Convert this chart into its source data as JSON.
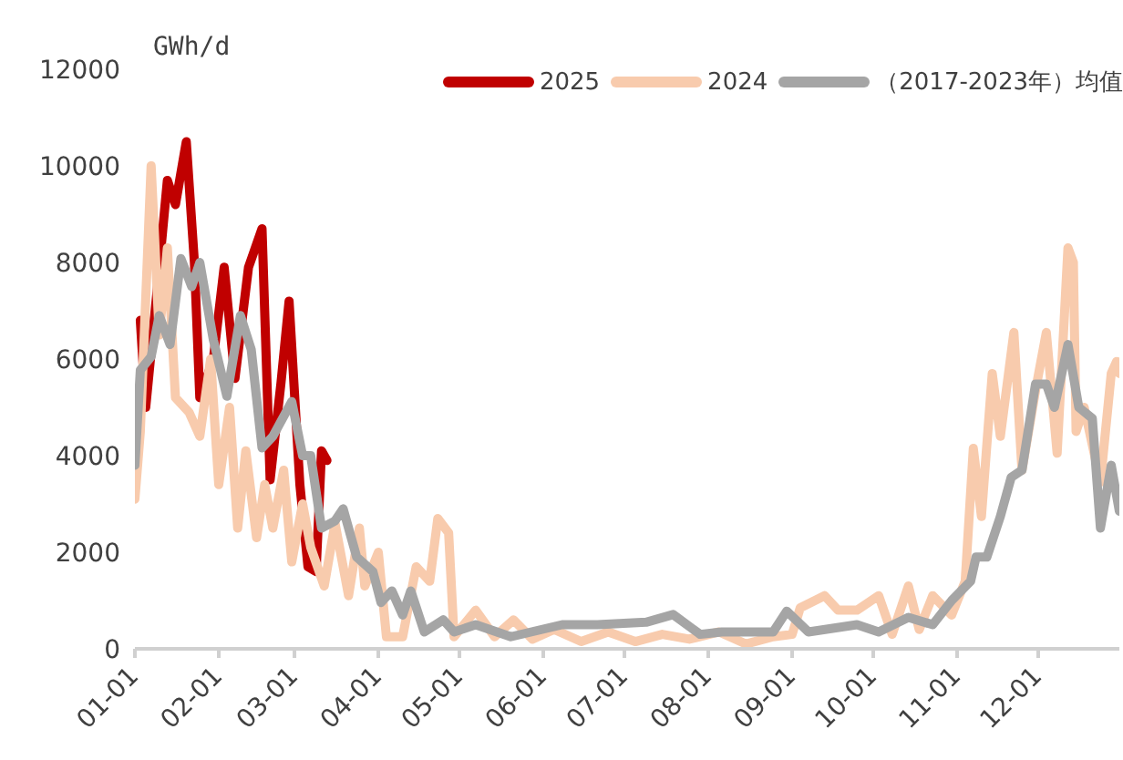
{
  "chart_data": {
    "type": "line",
    "ylabel": "GWh/d",
    "legend": "top right",
    "grid": false,
    "xlim": [
      "--01-01",
      "--12-31"
    ],
    "xticks": [
      {
        "value": "--01-01",
        "label": "01-01"
      },
      {
        "value": "--02-01",
        "label": "02-01"
      },
      {
        "value": "--03-01",
        "label": "03-01"
      },
      {
        "value": "--04-01",
        "label": "04-01"
      },
      {
        "value": "--05-01",
        "label": "05-01"
      },
      {
        "value": "--06-01",
        "label": "06-01"
      },
      {
        "value": "--07-01",
        "label": "07-01"
      },
      {
        "value": "--08-01",
        "label": "08-01"
      },
      {
        "value": "--09-01",
        "label": "09-01"
      },
      {
        "value": "--10-01",
        "label": "10-01"
      },
      {
        "value": "--11-01",
        "label": "11-01"
      },
      {
        "value": "--12-01",
        "label": "12-01"
      }
    ],
    "ylim": [
      0,
      12000
    ],
    "yticks": [
      0,
      2000,
      4000,
      6000,
      8000,
      10000,
      12000
    ],
    "series": [
      {
        "name": "2025",
        "color": "#c00000",
        "x": [
          "--01-03",
          "--01-05",
          "--01-09",
          "--01-13",
          "--01-16",
          "--01-20",
          "--01-23",
          "--01-25",
          "--01-30",
          "--02-03",
          "--02-07",
          "--02-12",
          "--02-17",
          "--02-20",
          "--02-24",
          "--02-27",
          "--03-03",
          "--03-06",
          "--03-09",
          "--03-11",
          "--03-13"
        ],
        "values": [
          6800,
          5000,
          7300,
          9700,
          9200,
          10500,
          8000,
          5200,
          6000,
          7900,
          5600,
          7900,
          8700,
          3500,
          5500,
          7200,
          3400,
          1700,
          1600,
          4100,
          3900
        ]
      },
      {
        "name": "2024",
        "color": "#f8cbad",
        "x": [
          "--01-01",
          "--01-03",
          "--01-07",
          "--01-10",
          "--01-13",
          "--01-16",
          "--01-21",
          "--01-25",
          "--01-29",
          "--02-01",
          "--02-05",
          "--02-08",
          "--02-11",
          "--02-15",
          "--02-18",
          "--02-21",
          "--02-25",
          "--02-28",
          "--03-04",
          "--03-07",
          "--03-12",
          "--03-16",
          "--03-21",
          "--03-25",
          "--03-27",
          "--04-01",
          "--04-04",
          "--04-10",
          "--04-15",
          "--04-20",
          "--04-23",
          "--04-27",
          "--04-29",
          "--05-07",
          "--05-14",
          "--05-21",
          "--05-28",
          "--06-05",
          "--06-15",
          "--06-25",
          "--07-05",
          "--07-15",
          "--07-25",
          "--08-05",
          "--08-15",
          "--08-25",
          "--09-01",
          "--09-04",
          "--09-13",
          "--09-18",
          "--09-25",
          "--10-03",
          "--10-08",
          "--10-14",
          "--10-18",
          "--10-23",
          "--10-30",
          "--11-04",
          "--11-07",
          "--11-10",
          "--11-14",
          "--11-17",
          "--11-22",
          "--11-25",
          "--11-30",
          "--12-04",
          "--12-08",
          "--12-12",
          "--12-14",
          "--12-15",
          "--12-18",
          "--12-24",
          "--12-28",
          "--12-30",
          "--12-31"
        ],
        "values": [
          3100,
          4500,
          10000,
          6500,
          8300,
          5200,
          4900,
          4400,
          6000,
          3400,
          5000,
          2500,
          4100,
          2300,
          3400,
          2500,
          3700,
          1800,
          3000,
          2100,
          1300,
          2600,
          1100,
          2500,
          1300,
          2000,
          250,
          250,
          1700,
          1400,
          2700,
          2400,
          250,
          800,
          250,
          600,
          200,
          400,
          150,
          350,
          150,
          300,
          200,
          350,
          100,
          250,
          300,
          850,
          1100,
          800,
          800,
          1100,
          300,
          1300,
          400,
          1100,
          700,
          1400,
          4150,
          2740,
          5700,
          4400,
          6550,
          3700,
          5350,
          6550,
          4050,
          8300,
          8000,
          4500,
          5000,
          3450,
          5700,
          5950,
          5700
        ]
      },
      {
        "name": "（2017-2023年）均值",
        "color": "#a5a5a5",
        "x": [
          "--01-01",
          "--01-03",
          "--01-07",
          "--01-10",
          "--01-14",
          "--01-18",
          "--01-22",
          "--01-25",
          "--01-30",
          "--02-04",
          "--02-09",
          "--02-13",
          "--02-17",
          "--02-21",
          "--02-28",
          "--03-04",
          "--03-07",
          "--03-11",
          "--03-16",
          "--03-19",
          "--03-24",
          "--03-30",
          "--04-02",
          "--04-06",
          "--04-10",
          "--04-13",
          "--04-18",
          "--04-25",
          "--04-29",
          "--05-07",
          "--05-20",
          "--06-08",
          "--06-21",
          "--07-09",
          "--07-19",
          "--07-29",
          "--08-06",
          "--08-25",
          "--08-30",
          "--09-07",
          "--09-25",
          "--10-03",
          "--10-14",
          "--10-23",
          "--10-30",
          "--11-06",
          "--11-08",
          "--11-12",
          "--11-17",
          "--11-21",
          "--11-25",
          "--11-30",
          "--12-04",
          "--12-07",
          "--12-12",
          "--12-16",
          "--12-21",
          "--12-24",
          "--12-28",
          "--12-31"
        ],
        "values": [
          3800,
          5770,
          6050,
          6900,
          6300,
          8080,
          7500,
          8000,
          6400,
          5230,
          6900,
          6200,
          4160,
          4400,
          5120,
          4000,
          4000,
          2500,
          2650,
          2900,
          1900,
          1600,
          960,
          1200,
          700,
          1200,
          350,
          600,
          350,
          500,
          250,
          500,
          500,
          550,
          710,
          300,
          350,
          350,
          780,
          350,
          500,
          350,
          650,
          500,
          1000,
          1400,
          1900,
          1900,
          2740,
          3550,
          3700,
          5480,
          5480,
          5000,
          6300,
          5000,
          4770,
          2500,
          3800,
          2850
        ]
      }
    ]
  }
}
